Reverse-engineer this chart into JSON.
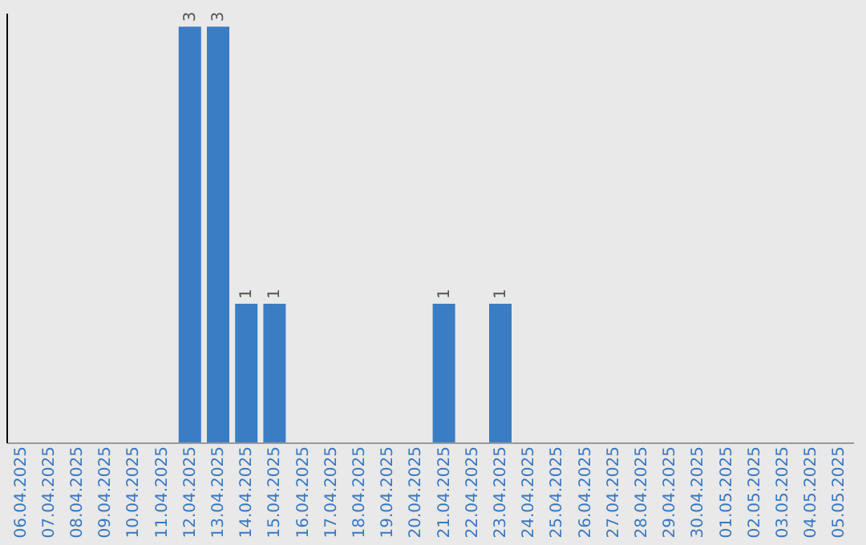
{
  "chart_data": {
    "type": "bar",
    "categories": [
      "06.04.2025",
      "07.04.2025",
      "08.04.2025",
      "09.04.2025",
      "10.04.2025",
      "11.04.2025",
      "12.04.2025",
      "13.04.2025",
      "14.04.2025",
      "15.04.2025",
      "16.04.2025",
      "17.04.2025",
      "18.04.2025",
      "19.04.2025",
      "20.04.2025",
      "21.04.2025",
      "22.04.2025",
      "23.04.2025",
      "24.04.2025",
      "25.04.2025",
      "26.04.2025",
      "27.04.2025",
      "28.04.2025",
      "29.04.2025",
      "30.04.2025",
      "01.05.2025",
      "02.05.2025",
      "03.05.2025",
      "04.05.2025",
      "05.05.2025"
    ],
    "values": [
      0,
      0,
      0,
      0,
      0,
      0,
      3,
      3,
      1,
      1,
      0,
      0,
      0,
      0,
      0,
      1,
      0,
      1,
      0,
      0,
      0,
      0,
      0,
      0,
      0,
      0,
      0,
      0,
      0,
      0
    ],
    "value_labels": [
      null,
      null,
      null,
      null,
      null,
      null,
      "3",
      "3",
      "1",
      "1",
      null,
      null,
      null,
      null,
      null,
      "1",
      null,
      "1",
      null,
      null,
      null,
      null,
      null,
      null,
      null,
      null,
      null,
      null,
      null,
      null
    ],
    "color": "#3b7dc4",
    "ylim": [
      0,
      3.1
    ],
    "tick_labels": "x",
    "grid": false
  }
}
